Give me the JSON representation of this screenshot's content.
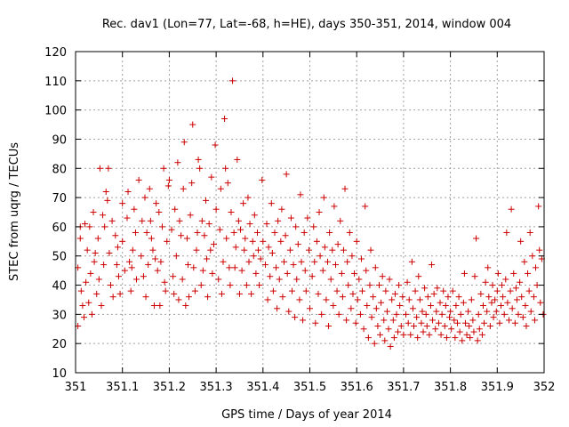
{
  "chart_data": {
    "type": "scatter",
    "title": "Rec. dav1 (Lon=77, Lat=-68, h=HE), days 350-351, 2014, window 004",
    "xlabel": "GPS time / Days of year 2014",
    "ylabel": "STEC from uqrg / TECUs",
    "xlim": [
      351,
      352
    ],
    "ylim": [
      10,
      120
    ],
    "x_ticks": [
      "351",
      "351.1",
      "351.2",
      "351.3",
      "351.4",
      "351.5",
      "351.6",
      "351.7",
      "351.8",
      "351.9",
      "352"
    ],
    "y_ticks": [
      "10",
      "20",
      "30",
      "40",
      "50",
      "60",
      "70",
      "80",
      "90",
      "100",
      "110",
      "120"
    ],
    "x_tick_values": [
      351,
      351.1,
      351.2,
      351.3,
      351.4,
      351.5,
      351.6,
      351.7,
      351.8,
      351.9,
      352
    ],
    "y_tick_values": [
      10,
      20,
      30,
      40,
      50,
      60,
      70,
      80,
      90,
      100,
      110,
      120
    ],
    "grid": true,
    "marker": "plus",
    "color": "#cc0000",
    "points": [
      [
        351.005,
        46
      ],
      [
        351.005,
        26
      ],
      [
        351.01,
        56
      ],
      [
        351.01,
        60
      ],
      [
        351.012,
        38
      ],
      [
        351.015,
        33
      ],
      [
        351.018,
        29
      ],
      [
        351.02,
        61
      ],
      [
        351.022,
        41
      ],
      [
        351.025,
        52
      ],
      [
        351.028,
        34
      ],
      [
        351.03,
        60
      ],
      [
        351.032,
        44
      ],
      [
        351.035,
        30
      ],
      [
        351.038,
        65
      ],
      [
        351.04,
        48
      ],
      [
        351.042,
        51
      ],
      [
        351.045,
        37
      ],
      [
        351.048,
        56
      ],
      [
        351.05,
        42
      ],
      [
        351.052,
        80
      ],
      [
        351.055,
        33
      ],
      [
        351.058,
        64
      ],
      [
        351.06,
        47
      ],
      [
        351.062,
        60
      ],
      [
        351.065,
        72
      ],
      [
        351.068,
        69
      ],
      [
        351.07,
        80
      ],
      [
        351.072,
        51
      ],
      [
        351.075,
        40
      ],
      [
        351.078,
        62
      ],
      [
        351.08,
        36
      ],
      [
        351.085,
        57
      ],
      [
        351.088,
        47
      ],
      [
        351.09,
        53
      ],
      [
        351.092,
        43
      ],
      [
        351.095,
        37
      ],
      [
        351.1,
        55
      ],
      [
        351.1,
        68
      ],
      [
        351.105,
        45
      ],
      [
        351.11,
        63
      ],
      [
        351.112,
        72
      ],
      [
        351.115,
        48
      ],
      [
        351.118,
        38
      ],
      [
        351.12,
        46
      ],
      [
        351.122,
        52
      ],
      [
        351.125,
        66
      ],
      [
        351.128,
        58
      ],
      [
        351.13,
        42
      ],
      [
        351.135,
        76
      ],
      [
        351.14,
        50
      ],
      [
        351.142,
        62
      ],
      [
        351.145,
        43
      ],
      [
        351.148,
        70
      ],
      [
        351.15,
        36
      ],
      [
        351.152,
        58
      ],
      [
        351.155,
        47
      ],
      [
        351.158,
        73
      ],
      [
        351.16,
        62
      ],
      [
        351.162,
        56
      ],
      [
        351.165,
        52
      ],
      [
        351.168,
        33
      ],
      [
        351.17,
        49
      ],
      [
        351.172,
        68
      ],
      [
        351.175,
        45
      ],
      [
        351.178,
        65
      ],
      [
        351.18,
        33
      ],
      [
        351.182,
        48
      ],
      [
        351.185,
        60
      ],
      [
        351.188,
        80
      ],
      [
        351.19,
        41
      ],
      [
        351.192,
        38
      ],
      [
        351.195,
        55
      ],
      [
        351.198,
        74
      ],
      [
        351.2,
        76
      ],
      [
        351.205,
        59
      ],
      [
        351.208,
        43
      ],
      [
        351.21,
        37
      ],
      [
        351.212,
        66
      ],
      [
        351.215,
        50
      ],
      [
        351.218,
        82
      ],
      [
        351.22,
        35
      ],
      [
        351.222,
        62
      ],
      [
        351.225,
        57
      ],
      [
        351.228,
        42
      ],
      [
        351.23,
        73
      ],
      [
        351.232,
        89
      ],
      [
        351.235,
        33
      ],
      [
        351.238,
        56
      ],
      [
        351.24,
        47
      ],
      [
        351.242,
        36
      ],
      [
        351.245,
        64
      ],
      [
        351.248,
        75
      ],
      [
        351.25,
        95
      ],
      [
        351.252,
        46
      ],
      [
        351.255,
        38
      ],
      [
        351.258,
        52
      ],
      [
        351.26,
        58
      ],
      [
        351.262,
        83
      ],
      [
        351.265,
        80
      ],
      [
        351.268,
        40
      ],
      [
        351.27,
        62
      ],
      [
        351.272,
        45
      ],
      [
        351.275,
        57
      ],
      [
        351.278,
        69
      ],
      [
        351.28,
        49
      ],
      [
        351.282,
        36
      ],
      [
        351.285,
        61
      ],
      [
        351.288,
        52
      ],
      [
        351.29,
        77
      ],
      [
        351.292,
        44
      ],
      [
        351.295,
        54
      ],
      [
        351.298,
        88
      ],
      [
        351.3,
        66
      ],
      [
        351.305,
        42
      ],
      [
        351.308,
        59
      ],
      [
        351.31,
        73
      ],
      [
        351.312,
        37
      ],
      [
        351.315,
        48
      ],
      [
        351.318,
        97
      ],
      [
        351.32,
        80
      ],
      [
        351.322,
        56
      ],
      [
        351.325,
        75
      ],
      [
        351.328,
        46
      ],
      [
        351.33,
        40
      ],
      [
        351.332,
        65
      ],
      [
        351.335,
        110
      ],
      [
        351.338,
        58
      ],
      [
        351.34,
        46
      ],
      [
        351.342,
        53
      ],
      [
        351.345,
        83
      ],
      [
        351.348,
        62
      ],
      [
        351.35,
        37
      ],
      [
        351.352,
        59
      ],
      [
        351.355,
        45
      ],
      [
        351.358,
        68
      ],
      [
        351.36,
        52
      ],
      [
        351.362,
        56
      ],
      [
        351.365,
        40
      ],
      [
        351.368,
        70
      ],
      [
        351.37,
        48
      ],
      [
        351.372,
        61
      ],
      [
        351.375,
        37
      ],
      [
        351.378,
        55
      ],
      [
        351.38,
        50
      ],
      [
        351.382,
        64
      ],
      [
        351.385,
        44
      ],
      [
        351.388,
        58
      ],
      [
        351.39,
        52
      ],
      [
        351.392,
        40
      ],
      [
        351.395,
        49
      ],
      [
        351.398,
        76
      ],
      [
        351.4,
        55
      ],
      [
        351.405,
        47
      ],
      [
        351.408,
        61
      ],
      [
        351.41,
        35
      ],
      [
        351.412,
        53
      ],
      [
        351.415,
        43
      ],
      [
        351.418,
        68
      ],
      [
        351.42,
        51
      ],
      [
        351.422,
        38
      ],
      [
        351.425,
        58
      ],
      [
        351.428,
        46
      ],
      [
        351.43,
        32
      ],
      [
        351.432,
        62
      ],
      [
        351.435,
        42
      ],
      [
        351.438,
        55
      ],
      [
        351.44,
        66
      ],
      [
        351.442,
        36
      ],
      [
        351.445,
        48
      ],
      [
        351.448,
        57
      ],
      [
        351.45,
        78
      ],
      [
        351.452,
        44
      ],
      [
        351.455,
        31
      ],
      [
        351.458,
        52
      ],
      [
        351.46,
        63
      ],
      [
        351.462,
        38
      ],
      [
        351.465,
        47
      ],
      [
        351.468,
        29
      ],
      [
        351.47,
        60
      ],
      [
        351.472,
        42
      ],
      [
        351.475,
        54
      ],
      [
        351.478,
        35
      ],
      [
        351.48,
        71
      ],
      [
        351.482,
        48
      ],
      [
        351.485,
        28
      ],
      [
        351.488,
        58
      ],
      [
        351.49,
        45
      ],
      [
        351.492,
        38
      ],
      [
        351.495,
        63
      ],
      [
        351.498,
        52
      ],
      [
        351.5,
        32
      ],
      [
        351.505,
        43
      ],
      [
        351.508,
        60
      ],
      [
        351.51,
        48
      ],
      [
        351.512,
        27
      ],
      [
        351.515,
        55
      ],
      [
        351.518,
        37
      ],
      [
        351.52,
        65
      ],
      [
        351.522,
        50
      ],
      [
        351.525,
        30
      ],
      [
        351.528,
        45
      ],
      [
        351.53,
        70
      ],
      [
        351.532,
        53
      ],
      [
        351.535,
        35
      ],
      [
        351.538,
        48
      ],
      [
        351.54,
        26
      ],
      [
        351.542,
        58
      ],
      [
        351.545,
        42
      ],
      [
        351.548,
        52
      ],
      [
        351.55,
        33
      ],
      [
        351.552,
        67
      ],
      [
        351.555,
        47
      ],
      [
        351.558,
        38
      ],
      [
        351.56,
        54
      ],
      [
        351.562,
        30
      ],
      [
        351.565,
        62
      ],
      [
        351.568,
        44
      ],
      [
        351.57,
        36
      ],
      [
        351.572,
        52
      ],
      [
        351.575,
        73
      ],
      [
        351.578,
        28
      ],
      [
        351.58,
        48
      ],
      [
        351.582,
        40
      ],
      [
        351.585,
        58
      ],
      [
        351.588,
        32
      ],
      [
        351.59,
        50
      ],
      [
        351.592,
        37
      ],
      [
        351.595,
        44
      ],
      [
        351.598,
        27
      ],
      [
        351.6,
        55
      ],
      [
        351.602,
        35
      ],
      [
        351.605,
        42
      ],
      [
        351.608,
        30
      ],
      [
        351.61,
        49
      ],
      [
        351.612,
        38
      ],
      [
        351.615,
        25
      ],
      [
        351.618,
        67
      ],
      [
        351.62,
        45
      ],
      [
        351.622,
        33
      ],
      [
        351.625,
        22
      ],
      [
        351.628,
        40
      ],
      [
        351.63,
        52
      ],
      [
        351.632,
        29
      ],
      [
        351.635,
        36
      ],
      [
        351.638,
        20
      ],
      [
        351.64,
        46
      ],
      [
        351.642,
        32
      ],
      [
        351.645,
        26
      ],
      [
        351.648,
        40
      ],
      [
        351.65,
        23
      ],
      [
        351.652,
        34
      ],
      [
        351.655,
        43
      ],
      [
        351.658,
        28
      ],
      [
        351.66,
        21
      ],
      [
        351.662,
        38
      ],
      [
        351.665,
        31
      ],
      [
        351.668,
        25
      ],
      [
        351.67,
        42
      ],
      [
        351.672,
        19
      ],
      [
        351.675,
        35
      ],
      [
        351.678,
        28
      ],
      [
        351.68,
        22
      ],
      [
        351.682,
        37
      ],
      [
        351.685,
        30
      ],
      [
        351.688,
        24
      ],
      [
        351.69,
        40
      ],
      [
        351.692,
        33
      ],
      [
        351.695,
        26
      ],
      [
        351.698,
        36
      ],
      [
        351.7,
        23
      ],
      [
        351.705,
        30
      ],
      [
        351.708,
        41
      ],
      [
        351.71,
        27
      ],
      [
        351.712,
        35
      ],
      [
        351.715,
        23
      ],
      [
        351.718,
        48
      ],
      [
        351.72,
        32
      ],
      [
        351.722,
        26
      ],
      [
        351.725,
        38
      ],
      [
        351.728,
        29
      ],
      [
        351.73,
        22
      ],
      [
        351.732,
        43
      ],
      [
        351.735,
        35
      ],
      [
        351.738,
        27
      ],
      [
        351.74,
        31
      ],
      [
        351.742,
        24
      ],
      [
        351.745,
        39
      ],
      [
        351.748,
        30
      ],
      [
        351.75,
        26
      ],
      [
        351.752,
        36
      ],
      [
        351.755,
        23
      ],
      [
        351.758,
        33
      ],
      [
        351.76,
        47
      ],
      [
        351.762,
        28
      ],
      [
        351.765,
        37
      ],
      [
        351.768,
        25
      ],
      [
        351.77,
        31
      ],
      [
        351.772,
        39
      ],
      [
        351.775,
        27
      ],
      [
        351.778,
        34
      ],
      [
        351.78,
        23
      ],
      [
        351.782,
        30
      ],
      [
        351.785,
        38
      ],
      [
        351.788,
        26
      ],
      [
        351.79,
        33
      ],
      [
        351.792,
        22
      ],
      [
        351.795,
        36
      ],
      [
        351.798,
        29
      ],
      [
        351.8,
        31
      ],
      [
        351.802,
        25
      ],
      [
        351.805,
        38
      ],
      [
        351.808,
        28
      ],
      [
        351.81,
        22
      ],
      [
        351.812,
        33
      ],
      [
        351.815,
        27
      ],
      [
        351.818,
        36
      ],
      [
        351.82,
        24
      ],
      [
        351.822,
        30
      ],
      [
        351.825,
        21
      ],
      [
        351.828,
        34
      ],
      [
        351.83,
        44
      ],
      [
        351.832,
        27
      ],
      [
        351.835,
        23
      ],
      [
        351.838,
        31
      ],
      [
        351.84,
        26
      ],
      [
        351.842,
        22
      ],
      [
        351.845,
        35
      ],
      [
        351.848,
        28
      ],
      [
        351.85,
        24
      ],
      [
        351.852,
        43
      ],
      [
        351.855,
        56
      ],
      [
        351.858,
        21
      ],
      [
        351.86,
        30
      ],
      [
        351.862,
        25
      ],
      [
        351.865,
        37
      ],
      [
        351.868,
        23
      ],
      [
        351.87,
        33
      ],
      [
        351.872,
        27
      ],
      [
        351.875,
        41
      ],
      [
        351.878,
        31
      ],
      [
        351.88,
        46
      ],
      [
        351.882,
        36
      ],
      [
        351.885,
        26
      ],
      [
        351.888,
        34
      ],
      [
        351.89,
        40
      ],
      [
        351.892,
        29
      ],
      [
        351.895,
        35
      ],
      [
        351.898,
        31
      ],
      [
        351.9,
        38
      ],
      [
        351.902,
        44
      ],
      [
        351.905,
        27
      ],
      [
        351.908,
        33
      ],
      [
        351.91,
        40
      ],
      [
        351.912,
        36
      ],
      [
        351.915,
        30
      ],
      [
        351.918,
        42
      ],
      [
        351.92,
        58
      ],
      [
        351.922,
        34
      ],
      [
        351.925,
        28
      ],
      [
        351.928,
        38
      ],
      [
        351.93,
        66
      ],
      [
        351.932,
        32
      ],
      [
        351.935,
        44
      ],
      [
        351.938,
        27
      ],
      [
        351.94,
        39
      ],
      [
        351.942,
        35
      ],
      [
        351.945,
        30
      ],
      [
        351.948,
        41
      ],
      [
        351.95,
        55
      ],
      [
        351.952,
        36
      ],
      [
        351.955,
        29
      ],
      [
        351.958,
        48
      ],
      [
        351.96,
        33
      ],
      [
        351.962,
        26
      ],
      [
        351.965,
        44
      ],
      [
        351.968,
        38
      ],
      [
        351.97,
        58
      ],
      [
        351.972,
        31
      ],
      [
        351.975,
        50
      ],
      [
        351.978,
        36
      ],
      [
        351.98,
        28
      ],
      [
        351.982,
        46
      ],
      [
        351.985,
        40
      ],
      [
        351.988,
        67
      ],
      [
        351.99,
        52
      ],
      [
        351.992,
        34
      ],
      [
        351.995,
        49
      ],
      [
        351.998,
        30
      ]
    ]
  }
}
